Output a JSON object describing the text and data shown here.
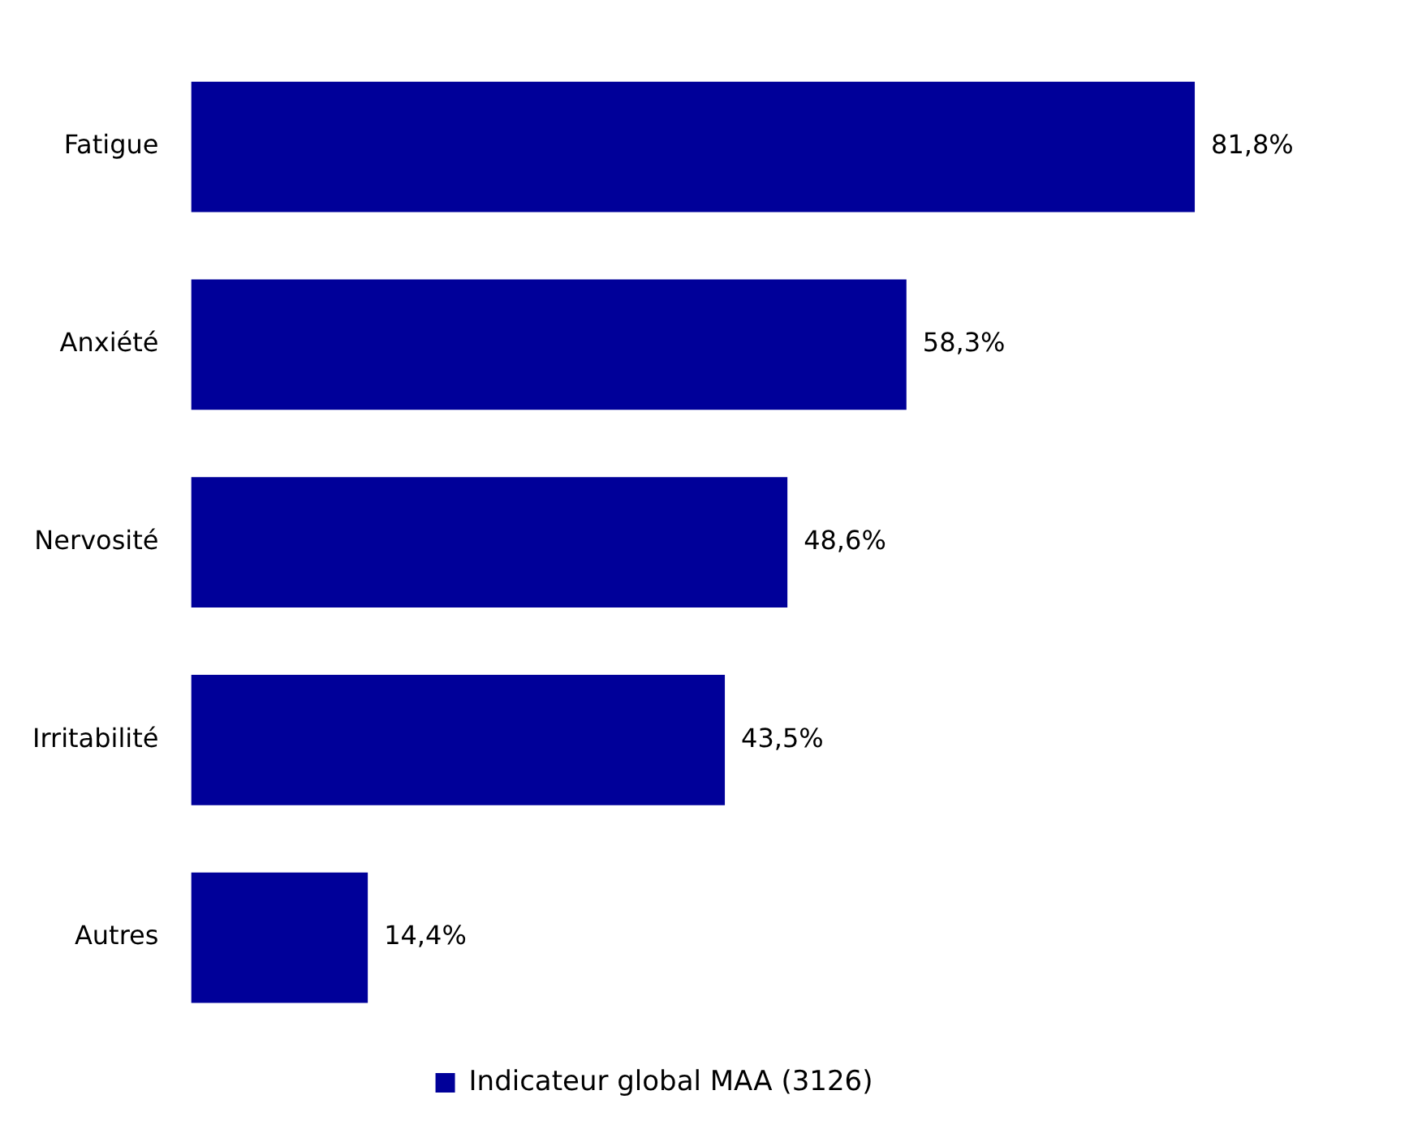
{
  "chart_data": {
    "type": "bar",
    "orientation": "horizontal",
    "categories": [
      "Fatigue",
      "Anxiété",
      "Nervosité",
      "Irritabilité",
      "Autres"
    ],
    "series": [
      {
        "name": "Indicateur global MAA (3126)",
        "color": "#000099",
        "values": [
          81.8,
          58.3,
          48.6,
          43.5,
          14.4
        ],
        "value_labels": [
          "81,8%",
          "58,3%",
          "48,6%",
          "43,5%",
          "14,4%"
        ]
      }
    ],
    "legend": "bottom"
  }
}
